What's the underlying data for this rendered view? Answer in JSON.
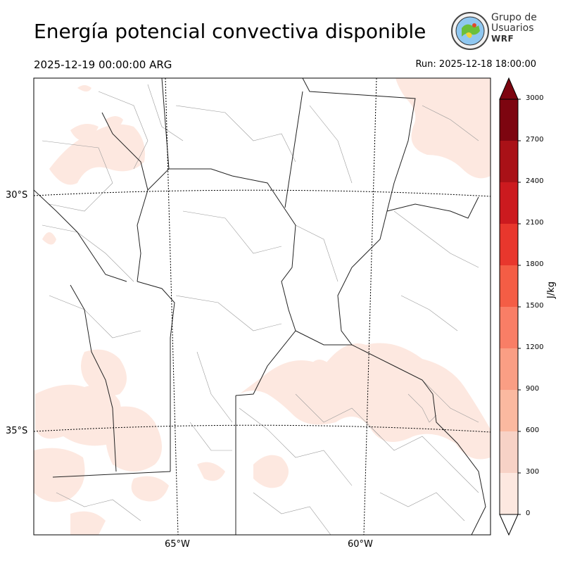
{
  "header": {
    "title": "Energía potencial convectiva disponible",
    "valid_time": "2025-12-19 00:00:00 ARG",
    "run_time": "Run: 2025-12-18 18:00:00"
  },
  "logo": {
    "line1": "Grupo de",
    "line2": "Usuarios",
    "line3": "WRF",
    "icon": "globe-seal-icon"
  },
  "map": {
    "lat_labels": [
      "30°S",
      "35°S"
    ],
    "lon_labels": [
      "65°W",
      "60°W"
    ]
  },
  "colorbar": {
    "label": "J/kg",
    "ticks": [
      "0",
      "300",
      "600",
      "900",
      "1200",
      "1500",
      "1800",
      "2100",
      "2400",
      "2700",
      "3000"
    ],
    "colors": [
      "#fde8e0",
      "#f7d2c6",
      "#fbb9a0",
      "#fa9e84",
      "#f97e66",
      "#f45d45",
      "#e8372d",
      "#cc1a1f",
      "#a91117",
      "#7d0510"
    ],
    "extend": "both"
  }
}
